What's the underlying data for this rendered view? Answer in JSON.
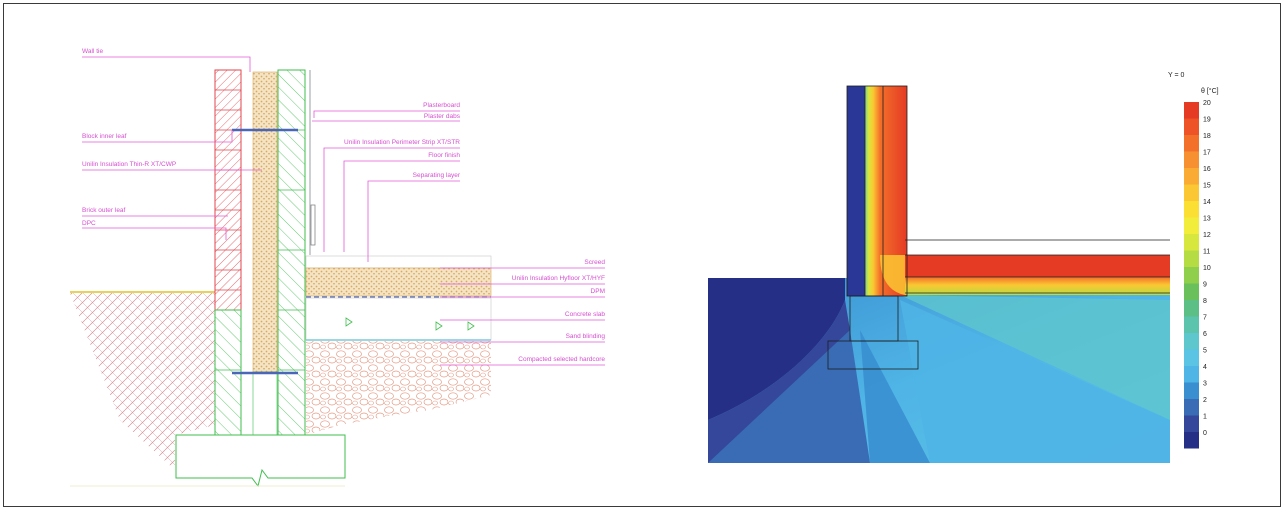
{
  "section_labels": {
    "wall_tie": "Wall tie",
    "block_inner_leaf": "Block inner leaf",
    "cavity_insulation": "Unilin Insulation Thin-R XT/CWP",
    "brick_outer_leaf": "Brick outer leaf",
    "dpc": "DPC",
    "plasterboard": "Plasterboard",
    "plaster_dabs": "Plaster dabs",
    "perimeter_strip": "Unilin Insulation Perimeter Strip XT/STR",
    "floor_finish": "Floor finish",
    "separating_layer": "Separating layer",
    "screed": "Screed",
    "floor_insulation": "Unilin Insulation Hyfloor XT/HYF",
    "dpm": "DPM",
    "concrete_slab": "Concrete slab",
    "sand_blinding": "Sand blinding",
    "hardcore": "Compacted selected hardcore"
  },
  "thermal": {
    "slice_label": "Y = 0",
    "unit_label": "θ [°C]",
    "scale": [
      {
        "value": "20",
        "color": "#e53a24"
      },
      {
        "value": "19",
        "color": "#ee5227"
      },
      {
        "value": "18",
        "color": "#f3702a"
      },
      {
        "value": "17",
        "color": "#f79030"
      },
      {
        "value": "16",
        "color": "#f9ab33"
      },
      {
        "value": "15",
        "color": "#fbc732"
      },
      {
        "value": "14",
        "color": "#fbe033"
      },
      {
        "value": "13",
        "color": "#f2ec3a"
      },
      {
        "value": "12",
        "color": "#d8e73e"
      },
      {
        "value": "11",
        "color": "#b6dc43"
      },
      {
        "value": "10",
        "color": "#8fcf4b"
      },
      {
        "value": "9",
        "color": "#6ac15b"
      },
      {
        "value": "8",
        "color": "#5bbf86"
      },
      {
        "value": "7",
        "color": "#5cc3ad"
      },
      {
        "value": "6",
        "color": "#5ec6cd"
      },
      {
        "value": "5",
        "color": "#5bc3e4"
      },
      {
        "value": "4",
        "color": "#4fb4e6"
      },
      {
        "value": "3",
        "color": "#3a8fd0"
      },
      {
        "value": "2",
        "color": "#3a6cb5"
      },
      {
        "value": "1",
        "color": "#34479b"
      },
      {
        "value": "0",
        "color": "#262f86"
      }
    ]
  }
}
